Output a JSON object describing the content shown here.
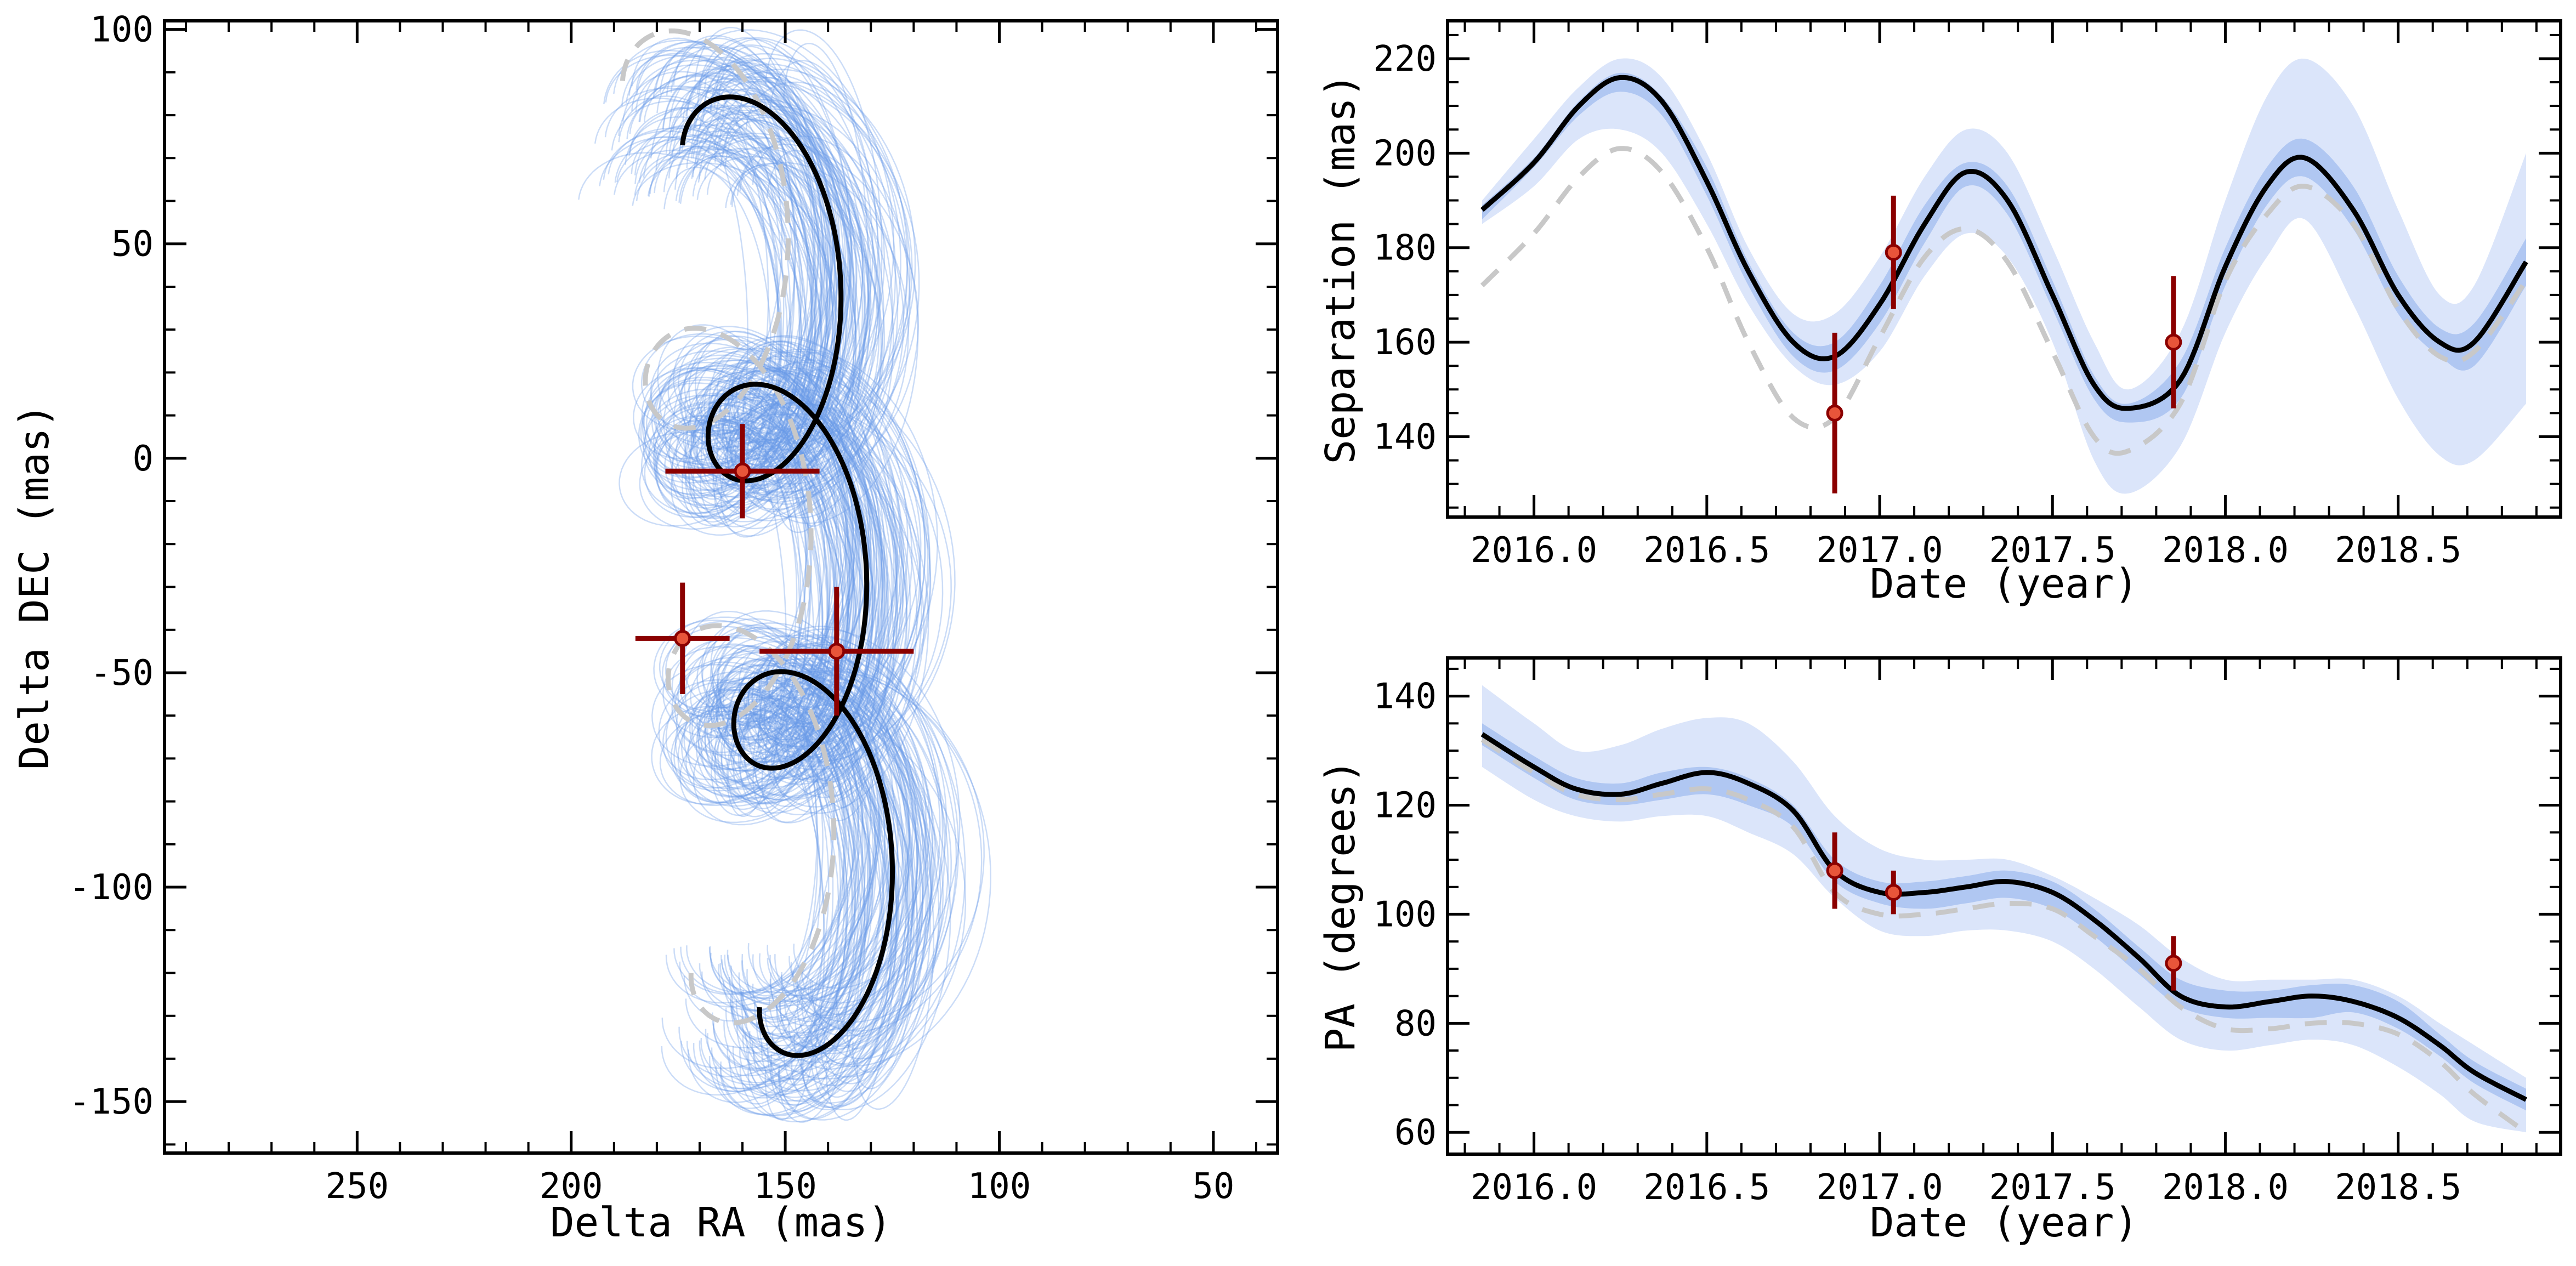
{
  "chart_data": [
    {
      "id": "sky",
      "type": "line",
      "title": "",
      "xlabel": "Delta RA (mas)",
      "ylabel": "Delta DEC (mas)",
      "xlim": [
        295,
        35
      ],
      "ylim": [
        -162,
        102
      ],
      "xticks": [
        250,
        200,
        150,
        100,
        50
      ],
      "yticks": [
        100,
        50,
        0,
        -50,
        -100,
        -150
      ],
      "grid": false,
      "colors": {
        "model": "#000000",
        "prior": "#c8c8c8",
        "samples": "#6a9ae8",
        "data": "#8b0000",
        "marker": "#e8553a"
      },
      "best_fit_track": {
        "ra_center": 148,
        "ra_amp": 17,
        "ra_drift": -18,
        "dec_start": 73,
        "dec_end": -128,
        "loops": 3
      },
      "prior_track": {
        "ra_center": 162,
        "ra_amp": 18,
        "ra_drift": -16,
        "dec_start": 88,
        "dec_end": -120,
        "loops": 3
      },
      "series": [
        {
          "values": [
            {
              "ra": 160,
              "dec": -3,
              "ra_err": 18,
              "dec_err": 11
            },
            {
              "ra": 174,
              "dec": -42,
              "ra_err": 11,
              "dec_err": 13
            },
            {
              "ra": 138,
              "dec": -45,
              "ra_err": 18,
              "dec_err": 15
            }
          ]
        }
      ]
    },
    {
      "id": "sep",
      "type": "line",
      "title": "",
      "xlabel": "Date (year)",
      "ylabel": "Separation (mas)",
      "xlim": [
        2015.75,
        2018.97
      ],
      "ylim": [
        123,
        228
      ],
      "xticks": [
        "2016.0",
        "2016.5",
        "2017.0",
        "2017.5",
        "2018.0",
        "2018.5"
      ],
      "yticks": [
        140,
        160,
        180,
        200,
        220
      ],
      "grid": false,
      "x": [
        2015.85,
        2016.0,
        2016.13,
        2016.25,
        2016.37,
        2016.5,
        2016.62,
        2016.75,
        2016.87,
        2017.0,
        2017.13,
        2017.25,
        2017.37,
        2017.5,
        2017.62,
        2017.72,
        2017.87,
        2018.0,
        2018.12,
        2018.23,
        2018.37,
        2018.5,
        2018.62,
        2018.72,
        2018.87
      ],
      "series": [
        {
          "type": "band",
          "values": [
            190,
            203,
            214,
            220,
            216,
            200,
            180,
            166,
            166,
            178,
            195,
            205,
            200,
            180,
            160,
            150,
            162,
            190,
            212,
            220,
            210,
            188,
            170,
            172,
            200
          ]
        },
        {
          "type": "band",
          "values": [
            185,
            193,
            203,
            205,
            200,
            185,
            168,
            155,
            151,
            158,
            174,
            183,
            178,
            160,
            135,
            128,
            138,
            162,
            178,
            186,
            168,
            148,
            136,
            135,
            147
          ]
        },
        {
          "type": "band",
          "values": [
            189,
            199,
            211,
            217,
            212,
            197,
            177,
            162,
            160,
            172,
            189,
            198,
            193,
            173,
            153,
            147,
            156,
            180,
            197,
            203,
            193,
            174,
            163,
            164,
            182
          ]
        },
        {
          "type": "band",
          "values": [
            186,
            197,
            208,
            213,
            208,
            191,
            172,
            157,
            154,
            164,
            181,
            193,
            187,
            167,
            148,
            143,
            148,
            172,
            189,
            195,
            184,
            166,
            157,
            155,
            172
          ]
        },
        {
          "type": "line",
          "values": [
            188,
            198,
            210,
            216,
            211,
            194,
            175,
            160,
            157,
            168,
            185,
            196,
            190,
            170,
            151,
            146,
            152,
            176,
            193,
            199,
            188,
            170,
            160,
            160,
            177
          ]
        },
        {
          "type": "dashed",
          "values": [
            172,
            183,
            195,
            201,
            196,
            180,
            160,
            144,
            144,
            161,
            178,
            184,
            177,
            158,
            140,
            137,
            147,
            173,
            187,
            193,
            185,
            167,
            157,
            158,
            173
          ]
        },
        {
          "type": "points",
          "points": [
            {
              "x": 2016.87,
              "y": 145,
              "yerr": 17
            },
            {
              "x": 2017.04,
              "y": 179,
              "yerr": 12
            },
            {
              "x": 2017.85,
              "y": 160,
              "yerr": 14
            }
          ]
        }
      ]
    },
    {
      "id": "pa",
      "type": "line",
      "title": "",
      "xlabel": "Date (year)",
      "ylabel": "PA (degrees)",
      "xlim": [
        2015.75,
        2018.97
      ],
      "ylim": [
        56,
        147
      ],
      "xticks": [
        "2016.0",
        "2016.5",
        "2017.0",
        "2017.5",
        "2018.0",
        "2018.5"
      ],
      "yticks": [
        140,
        120,
        100,
        80,
        60
      ],
      "grid": false,
      "x": [
        2015.85,
        2016.0,
        2016.12,
        2016.25,
        2016.37,
        2016.5,
        2016.62,
        2016.75,
        2016.87,
        2017.0,
        2017.13,
        2017.25,
        2017.37,
        2017.5,
        2017.62,
        2017.75,
        2017.87,
        2018.0,
        2018.13,
        2018.25,
        2018.37,
        2018.5,
        2018.62,
        2018.72,
        2018.87
      ],
      "series": [
        {
          "type": "band",
          "values": [
            142,
            135,
            130,
            131,
            134,
            136,
            135,
            128,
            118,
            112,
            110,
            110,
            110,
            107,
            103,
            98,
            92,
            88,
            88,
            88,
            88,
            85,
            80,
            76,
            70
          ]
        },
        {
          "type": "band",
          "values": [
            127,
            121,
            118,
            117,
            118,
            118,
            115,
            111,
            103,
            97,
            96,
            97,
            97,
            95,
            90,
            83,
            77,
            75,
            76,
            77,
            76,
            72,
            67,
            62,
            60
          ]
        },
        {
          "type": "band",
          "values": [
            135,
            129,
            125,
            124,
            126,
            127,
            125,
            120,
            110,
            106,
            106,
            107,
            108,
            106,
            101,
            94,
            88,
            86,
            86,
            87,
            87,
            84,
            78,
            73,
            68
          ]
        },
        {
          "type": "band",
          "values": [
            131,
            125,
            121,
            120,
            121,
            122,
            120,
            116,
            106,
            102,
            101,
            102,
            103,
            101,
            96,
            89,
            83,
            81,
            81,
            81,
            82,
            79,
            74,
            69,
            64
          ]
        },
        {
          "type": "line",
          "values": [
            133,
            127,
            123,
            122,
            124,
            126,
            124,
            119,
            108,
            104,
            104,
            105,
            106,
            104,
            99,
            92,
            85,
            83,
            84,
            85,
            84,
            81,
            76,
            71,
            66
          ]
        },
        {
          "type": "dashed",
          "values": [
            132,
            126,
            122,
            121,
            122,
            123,
            121,
            116,
            104,
            100,
            100,
            101,
            102,
            101,
            96,
            90,
            83,
            79,
            79,
            80,
            80,
            78,
            73,
            67,
            60
          ]
        },
        {
          "type": "points",
          "points": [
            {
              "x": 2016.87,
              "y": 108,
              "yerr": 7
            },
            {
              "x": 2017.04,
              "y": 104,
              "yerr": 4
            },
            {
              "x": 2017.85,
              "y": 91,
              "yerr": 5
            }
          ]
        }
      ]
    }
  ]
}
